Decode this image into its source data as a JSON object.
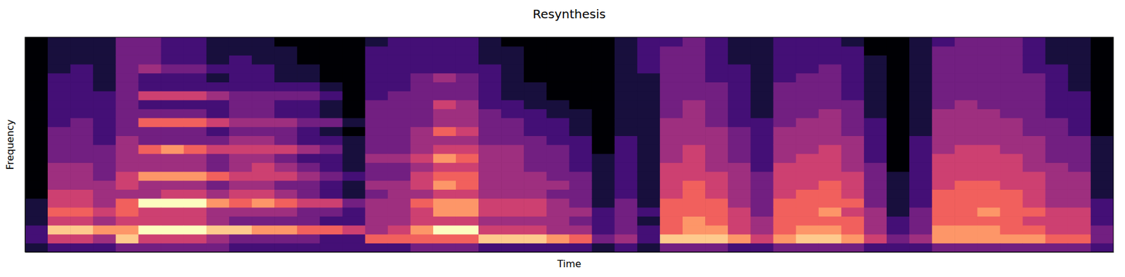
{
  "chart_data": {
    "type": "heatmap",
    "title": "Resynthesis",
    "x_label": "Time",
    "y_label": "Frequency",
    "tick_labels": false,
    "color": "magma",
    "cells": [
      [
        1,
        2,
        2,
        1,
        1,
        1,
        0,
        0,
        0,
        0,
        0,
        0,
        0,
        0,
        0,
        0,
        0,
        0,
        0,
        0,
        0,
        0,
        0,
        0
      ],
      [
        2,
        5,
        8,
        5,
        6,
        5,
        5,
        4,
        4,
        4,
        3,
        3,
        3,
        3,
        2,
        2,
        2,
        2,
        2,
        2,
        1,
        1,
        1,
        1
      ],
      [
        2,
        5,
        8,
        5,
        6,
        5,
        5,
        4,
        4,
        4,
        3,
        3,
        3,
        3,
        3,
        2,
        2,
        2,
        2,
        2,
        2,
        1,
        1,
        1
      ],
      [
        2,
        4,
        7,
        4,
        5,
        4,
        4,
        4,
        3,
        3,
        3,
        3,
        2,
        2,
        2,
        2,
        2,
        2,
        1,
        1,
        1,
        1,
        1,
        1
      ],
      [
        3,
        8,
        7,
        5,
        6,
        6,
        4,
        5,
        5,
        4,
        4,
        4,
        4,
        3,
        3,
        3,
        3,
        3,
        3,
        3,
        3,
        3,
        3,
        3
      ],
      [
        3,
        5,
        9,
        5,
        5,
        9,
        4,
        4,
        7,
        4,
        4,
        6,
        3,
        3,
        6,
        3,
        2,
        5,
        2,
        2,
        4,
        3,
        3,
        3
      ],
      [
        3,
        5,
        9,
        5,
        5,
        9,
        5,
        4,
        7,
        4,
        4,
        7,
        3,
        3,
        6,
        3,
        2,
        5,
        2,
        2,
        3,
        2,
        2,
        2
      ],
      [
        3,
        5,
        9,
        5,
        5,
        9,
        5,
        4,
        7,
        4,
        4,
        6,
        3,
        3,
        6,
        3,
        2,
        5,
        2,
        2,
        3,
        2,
        2,
        2
      ],
      [
        3,
        4,
        8,
        4,
        4,
        7,
        4,
        3,
        6,
        3,
        3,
        5,
        3,
        2,
        5,
        2,
        2,
        4,
        2,
        1,
        2,
        1,
        1,
        1
      ],
      [
        2,
        3,
        8,
        3,
        4,
        6,
        5,
        4,
        5,
        4,
        4,
        5,
        4,
        3,
        4,
        3,
        3,
        3,
        2,
        2,
        2,
        2,
        1,
        1
      ],
      [
        2,
        3,
        7,
        3,
        4,
        7,
        5,
        4,
        5,
        5,
        4,
        5,
        4,
        3,
        4,
        3,
        3,
        3,
        2,
        2,
        2,
        1,
        1,
        1
      ],
      [
        2,
        3,
        7,
        3,
        4,
        6,
        4,
        3,
        5,
        4,
        3,
        5,
        3,
        3,
        4,
        2,
        2,
        3,
        2,
        1,
        1,
        1,
        1,
        0
      ],
      [
        2,
        3,
        6,
        3,
        3,
        5,
        3,
        3,
        4,
        3,
        2,
        4,
        2,
        2,
        3,
        2,
        2,
        3,
        2,
        1,
        1,
        0,
        0,
        0
      ],
      [
        2,
        2,
        6,
        2,
        3,
        5,
        2,
        2,
        3,
        2,
        2,
        3,
        2,
        1,
        3,
        1,
        1,
        2,
        1,
        0,
        0,
        0,
        0,
        0
      ],
      [
        2,
        2,
        5,
        2,
        2,
        3,
        1,
        1,
        2,
        1,
        1,
        1,
        1,
        0,
        1,
        0,
        0,
        0,
        0,
        0,
        0,
        0,
        0,
        0
      ],
      [
        2,
        6,
        4,
        4,
        4,
        4,
        3,
        4,
        3,
        3,
        4,
        3,
        3,
        3,
        3,
        3,
        3,
        2,
        2,
        2,
        2,
        2,
        2,
        1
      ],
      [
        2,
        6,
        5,
        4,
        4,
        4,
        4,
        4,
        3,
        3,
        4,
        3,
        3,
        3,
        3,
        3,
        3,
        3,
        2,
        2,
        2,
        2,
        2,
        2
      ],
      [
        3,
        6,
        7,
        5,
        5,
        6,
        4,
        5,
        5,
        4,
        5,
        4,
        4,
        4,
        3,
        3,
        3,
        3,
        3,
        3,
        2,
        2,
        2,
        2
      ],
      [
        3,
        6,
        9,
        5,
        7,
        7,
        5,
        7,
        6,
        5,
        7,
        5,
        4,
        6,
        4,
        4,
        5,
        3,
        3,
        4,
        2,
        2,
        2,
        2
      ],
      [
        3,
        6,
        9,
        5,
        7,
        7,
        5,
        6,
        6,
        5,
        6,
        5,
        4,
        5,
        4,
        4,
        4,
        3,
        3,
        3,
        2,
        2,
        2,
        2
      ],
      [
        2,
        8,
        5,
        4,
        5,
        5,
        4,
        4,
        4,
        4,
        4,
        4,
        3,
        3,
        3,
        3,
        2,
        2,
        2,
        2,
        2,
        1,
        1,
        1
      ],
      [
        2,
        8,
        5,
        4,
        5,
        5,
        4,
        4,
        4,
        4,
        4,
        4,
        3,
        3,
        3,
        2,
        2,
        1,
        1,
        1,
        1,
        1,
        1,
        0
      ],
      [
        2,
        8,
        5,
        4,
        5,
        5,
        4,
        4,
        4,
        3,
        3,
        3,
        3,
        2,
        2,
        2,
        1,
        1,
        1,
        0,
        0,
        0,
        0,
        0
      ],
      [
        2,
        7,
        4,
        4,
        4,
        4,
        3,
        4,
        3,
        3,
        3,
        3,
        2,
        2,
        2,
        1,
        1,
        0,
        0,
        0,
        0,
        0,
        0,
        0
      ],
      [
        2,
        6,
        4,
        3,
        4,
        3,
        3,
        3,
        3,
        2,
        2,
        2,
        2,
        1,
        1,
        1,
        0,
        0,
        0,
        0,
        0,
        0,
        0,
        0
      ],
      [
        1,
        3,
        2,
        2,
        2,
        1,
        1,
        1,
        1,
        1,
        1,
        0,
        0,
        0,
        0,
        0,
        0,
        0,
        0,
        0,
        0,
        0,
        0,
        0
      ],
      [
        2,
        4,
        3,
        3,
        3,
        3,
        2,
        2,
        2,
        2,
        2,
        2,
        2,
        1,
        1,
        1,
        1,
        1,
        1,
        1,
        1,
        1,
        1,
        1
      ],
      [
        1,
        2,
        2,
        1,
        2,
        1,
        1,
        1,
        1,
        1,
        1,
        1,
        1,
        1,
        1,
        1,
        1,
        1,
        1,
        1,
        2,
        2,
        2,
        2
      ],
      [
        3,
        8,
        6,
        6,
        6,
        6,
        5,
        5,
        5,
        5,
        4,
        4,
        4,
        4,
        4,
        3,
        3,
        3,
        3,
        3,
        3,
        3,
        3,
        2
      ],
      [
        3,
        8,
        7,
        7,
        6,
        6,
        6,
        6,
        5,
        5,
        5,
        5,
        4,
        4,
        4,
        4,
        4,
        3,
        3,
        3,
        3,
        3,
        3,
        3
      ],
      [
        3,
        8,
        7,
        6,
        6,
        6,
        5,
        5,
        5,
        4,
        4,
        4,
        4,
        4,
        3,
        3,
        3,
        3,
        3,
        2,
        2,
        2,
        2,
        2
      ],
      [
        2,
        7,
        5,
        5,
        5,
        4,
        4,
        4,
        4,
        4,
        3,
        3,
        3,
        3,
        2,
        2,
        2,
        2,
        2,
        2,
        2,
        1,
        1,
        1
      ],
      [
        2,
        5,
        4,
        4,
        3,
        3,
        3,
        3,
        3,
        2,
        2,
        2,
        2,
        2,
        2,
        1,
        1,
        1,
        1,
        1,
        1,
        1,
        1,
        1
      ],
      [
        3,
        7,
        6,
        6,
        6,
        6,
        5,
        5,
        5,
        5,
        4,
        4,
        4,
        4,
        3,
        3,
        3,
        3,
        3,
        2,
        2,
        2,
        2,
        2
      ],
      [
        3,
        8,
        7,
        6,
        6,
        6,
        6,
        5,
        5,
        5,
        5,
        4,
        4,
        4,
        4,
        3,
        3,
        3,
        3,
        3,
        2,
        2,
        2,
        2
      ],
      [
        3,
        8,
        7,
        6,
        7,
        6,
        6,
        6,
        5,
        5,
        5,
        5,
        4,
        4,
        4,
        4,
        3,
        3,
        3,
        3,
        3,
        2,
        2,
        2
      ],
      [
        3,
        7,
        6,
        6,
        5,
        6,
        5,
        5,
        5,
        4,
        4,
        4,
        4,
        3,
        3,
        3,
        3,
        2,
        2,
        2,
        2,
        2,
        2,
        1
      ],
      [
        2,
        5,
        4,
        4,
        4,
        3,
        3,
        3,
        3,
        3,
        2,
        2,
        2,
        2,
        2,
        1,
        1,
        1,
        1,
        1,
        1,
        1,
        0,
        0
      ],
      [
        2,
        3,
        2,
        2,
        1,
        1,
        1,
        1,
        1,
        0,
        0,
        0,
        0,
        0,
        0,
        0,
        0,
        0,
        0,
        0,
        0,
        0,
        0,
        0
      ],
      [
        2,
        4,
        3,
        3,
        3,
        2,
        2,
        2,
        2,
        2,
        2,
        2,
        2,
        1,
        1,
        1,
        1,
        1,
        1,
        1,
        1,
        1,
        1,
        1
      ],
      [
        3,
        7,
        7,
        6,
        6,
        6,
        6,
        5,
        5,
        5,
        5,
        4,
        4,
        4,
        4,
        4,
        3,
        3,
        3,
        3,
        3,
        3,
        3,
        2
      ],
      [
        3,
        7,
        7,
        6,
        6,
        6,
        6,
        6,
        5,
        5,
        5,
        5,
        4,
        4,
        4,
        4,
        4,
        3,
        3,
        3,
        3,
        3,
        3,
        3
      ],
      [
        3,
        7,
        7,
        6,
        7,
        6,
        6,
        6,
        5,
        5,
        5,
        5,
        4,
        4,
        4,
        4,
        3,
        3,
        3,
        3,
        3,
        3,
        3,
        3
      ],
      [
        3,
        7,
        6,
        6,
        6,
        6,
        6,
        5,
        5,
        5,
        5,
        4,
        4,
        4,
        4,
        3,
        3,
        3,
        3,
        3,
        3,
        3,
        3,
        3
      ],
      [
        3,
        7,
        6,
        5,
        6,
        5,
        5,
        5,
        5,
        4,
        4,
        4,
        4,
        3,
        3,
        3,
        3,
        3,
        3,
        3,
        2,
        2,
        2,
        2
      ],
      [
        3,
        6,
        5,
        5,
        5,
        4,
        4,
        4,
        4,
        4,
        3,
        3,
        3,
        3,
        3,
        2,
        2,
        2,
        2,
        2,
        2,
        1,
        1,
        1
      ],
      [
        3,
        6,
        5,
        5,
        5,
        4,
        4,
        4,
        4,
        3,
        3,
        3,
        3,
        2,
        2,
        2,
        2,
        2,
        1,
        1,
        1,
        1,
        1,
        1
      ],
      [
        2,
        3,
        3,
        2,
        2,
        2,
        1,
        1,
        1,
        1,
        1,
        1,
        1,
        0,
        0,
        0,
        0,
        0,
        0,
        0,
        0,
        0,
        0,
        0
      ]
    ]
  }
}
